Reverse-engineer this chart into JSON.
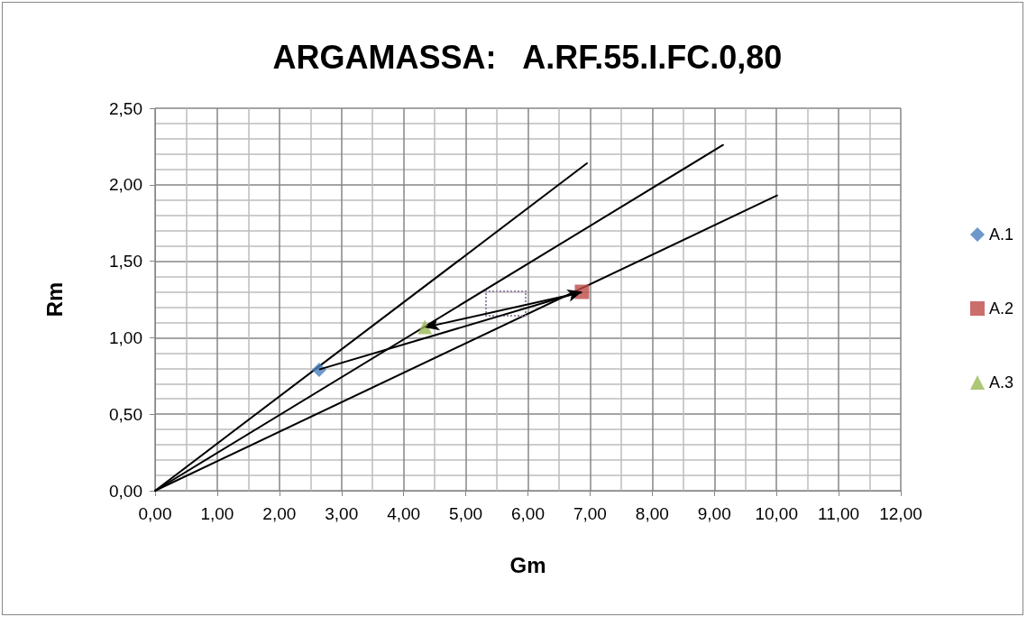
{
  "chart_data": {
    "type": "scatter",
    "title": "ARGAMASSA:   A.RF.55.I.FC.0,80",
    "xlabel": "Gm",
    "ylabel": "Rm",
    "series": [
      {
        "name": "A.1",
        "color": "#4a7ebb",
        "marker": "diamond",
        "x": [
          2.64
        ],
        "values": [
          0.79
        ]
      },
      {
        "name": "A.2",
        "color": "#be4b48",
        "marker": "square",
        "x": [
          6.87
        ],
        "values": [
          1.3
        ]
      },
      {
        "name": "A.3",
        "color": "#98b954",
        "marker": "triangle",
        "x": [
          4.34
        ],
        "values": [
          1.07
        ]
      },
      {
        "type": "line",
        "color": "#000000",
        "marker": "none",
        "x": [
          0,
          6.95
        ],
        "values": [
          0,
          2.14
        ]
      },
      {
        "type": "line",
        "color": "#000000",
        "marker": "none",
        "x": [
          0,
          9.14
        ],
        "values": [
          0,
          2.26
        ]
      },
      {
        "type": "line",
        "color": "#000000",
        "marker": "none",
        "x": [
          0,
          10.01
        ],
        "values": [
          0,
          1.93
        ]
      }
    ],
    "xlim": [
      0,
      12
    ],
    "xticks": [
      {
        "value": 0,
        "label": "0,00"
      },
      {
        "value": 1,
        "label": "1,00"
      },
      {
        "value": 2,
        "label": "2,00"
      },
      {
        "value": 3,
        "label": "3,00"
      },
      {
        "value": 4,
        "label": "4,00"
      },
      {
        "value": 5,
        "label": "5,00"
      },
      {
        "value": 6,
        "label": "6,00"
      },
      {
        "value": 7,
        "label": "7,00"
      },
      {
        "value": 8,
        "label": "8,00"
      },
      {
        "value": 9,
        "label": "9,00"
      },
      {
        "value": 10,
        "label": "10,00"
      },
      {
        "value": 11,
        "label": "11,00"
      },
      {
        "value": 12,
        "label": "12,00"
      }
    ],
    "ylim": [
      0,
      2.5
    ],
    "yticks": [
      {
        "value": 0,
        "label": "0,00"
      },
      {
        "value": 0.5,
        "label": "0,50"
      },
      {
        "value": 1,
        "label": "1,00"
      },
      {
        "value": 1.5,
        "label": "1,50"
      },
      {
        "value": 2,
        "label": "2,00"
      },
      {
        "value": 2.5,
        "label": "2,50"
      }
    ],
    "grid": true,
    "legend": "right"
  }
}
